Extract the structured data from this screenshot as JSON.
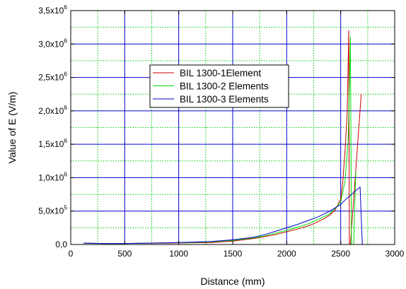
{
  "chart_data": {
    "type": "line",
    "xlabel": "Distance (mm)",
    "ylabel": "Value of E (V/m)",
    "xlim": [
      0,
      3000
    ],
    "ylim": [
      0,
      3500000
    ],
    "x_ticks": [
      0,
      500,
      1000,
      1500,
      2000,
      2500,
      3000
    ],
    "x_tick_labels": [
      "0",
      "500",
      "1000",
      "1500",
      "2000",
      "2500",
      "3000"
    ],
    "y_ticks": [
      0,
      500000,
      1000000,
      1500000,
      2000000,
      2500000,
      3000000,
      3500000
    ],
    "y_tick_labels": [
      {
        "mantissa": "0,0",
        "exp": ""
      },
      {
        "mantissa": "5,0x10",
        "exp": "5"
      },
      {
        "mantissa": "1,0x10",
        "exp": "6"
      },
      {
        "mantissa": "1,5x10",
        "exp": "6"
      },
      {
        "mantissa": "2,0x10",
        "exp": "6"
      },
      {
        "mantissa": "2,5x10",
        "exp": "6"
      },
      {
        "mantissa": "3,0x10",
        "exp": "6"
      },
      {
        "mantissa": "3,5x10",
        "exp": "6"
      }
    ],
    "grid": {
      "major": true,
      "minor": true,
      "major_color": "#0000cc",
      "minor_color": "#00cc00"
    },
    "legend_position": "upper-center",
    "series": [
      {
        "name": "BIL 1300-1Element",
        "color": "#cc0000",
        "x": [
          120,
          300,
          500,
          700,
          900,
          1100,
          1300,
          1500,
          1700,
          1800,
          1900,
          2000,
          2100,
          2200,
          2250,
          2300,
          2350,
          2400,
          2450,
          2500,
          2520,
          2540,
          2560,
          2575,
          2580,
          2590,
          2690
        ],
        "y": [
          20000,
          15000,
          15000,
          18000,
          20000,
          25000,
          30000,
          50000,
          90000,
          120000,
          150000,
          190000,
          230000,
          280000,
          310000,
          350000,
          390000,
          440000,
          520000,
          680000,
          950000,
          1400000,
          1950000,
          3200000,
          0,
          0,
          2250000
        ]
      },
      {
        "name": "BIL 1300-2 Elements",
        "color": "#00dd00",
        "x": [
          120,
          300,
          500,
          700,
          900,
          1100,
          1300,
          1500,
          1700,
          1800,
          1900,
          2000,
          2100,
          2200,
          2300,
          2400,
          2450,
          2500,
          2540,
          2570,
          2590,
          2600,
          2620,
          2640
        ],
        "y": [
          20000,
          15000,
          15000,
          20000,
          25000,
          30000,
          40000,
          60000,
          100000,
          130000,
          170000,
          210000,
          260000,
          310000,
          380000,
          460000,
          540000,
          640000,
          950000,
          1600000,
          3100000,
          0,
          0,
          1100000
        ]
      },
      {
        "name": "BIL 1300-3 Elements",
        "color": "#0000cc",
        "x": [
          120,
          300,
          500,
          700,
          900,
          1100,
          1300,
          1500,
          1700,
          1800,
          1900,
          2000,
          2100,
          2200,
          2300,
          2400,
          2500,
          2550,
          2600,
          2650,
          2680,
          2700
        ],
        "y": [
          20000,
          15000,
          15000,
          20000,
          25000,
          35000,
          45000,
          70000,
          110000,
          150000,
          200000,
          250000,
          300000,
          360000,
          420000,
          500000,
          600000,
          680000,
          750000,
          820000,
          860000,
          0
        ]
      }
    ]
  }
}
